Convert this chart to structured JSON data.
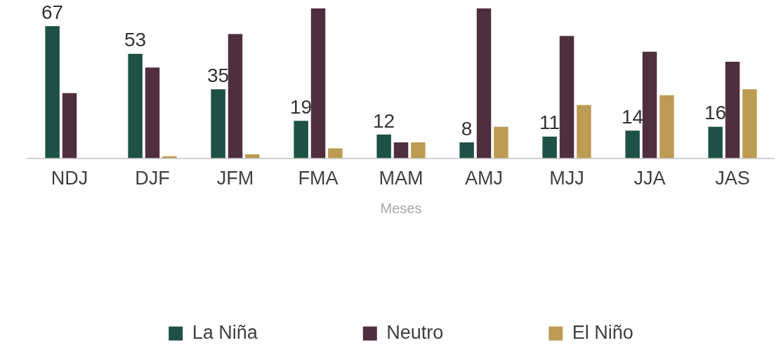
{
  "chart_data": {
    "type": "bar",
    "categories": [
      "NDJ",
      "DJF",
      "JFM",
      "FMA",
      "MAM",
      "AMJ",
      "MJJ",
      "JJA",
      "JAS"
    ],
    "xlabel": "Meses",
    "legend": "bottom",
    "series": [
      {
        "name": "La Niña",
        "color": "#1e5145",
        "values": [
          67,
          53,
          35,
          19,
          12,
          8,
          11,
          14,
          16
        ],
        "value_labels": [
          "67",
          "53",
          "35",
          "19",
          "12",
          "8",
          "11",
          "14",
          "16"
        ]
      },
      {
        "name": "Neutro",
        "color": "#4f2f3e",
        "values": [
          33,
          46,
          63,
          76,
          8,
          76,
          62,
          54,
          49
        ]
      },
      {
        "name": "El Niño",
        "color": "#bc9b52",
        "values": [
          0,
          1,
          2,
          5,
          8,
          16,
          27,
          32,
          35
        ]
      }
    ]
  }
}
